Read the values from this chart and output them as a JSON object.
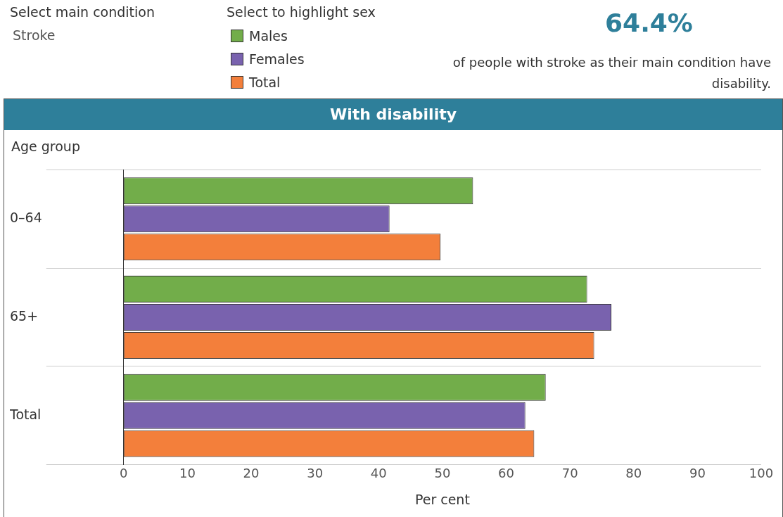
{
  "chart_data": {
    "type": "bar",
    "orientation": "horizontal",
    "title": "With disability",
    "ylabel": "Age group",
    "xlabel": "Per cent",
    "legend_title": "Select to highlight sex",
    "legend": "top left",
    "categories": [
      "0–64",
      "65+",
      "Total"
    ],
    "series": [
      {
        "name": "Males",
        "color": "#72ad4a",
        "values": [
          54.8,
          72.7,
          66.2
        ]
      },
      {
        "name": "Females",
        "color": "#7962ae",
        "values": [
          41.7,
          76.5,
          63.0
        ]
      },
      {
        "name": "Total",
        "color": "#f37f3b",
        "values": [
          49.7,
          73.8,
          64.4
        ]
      }
    ],
    "xlim": [
      0,
      100
    ],
    "xticks": [
      0,
      10,
      20,
      30,
      40,
      50,
      60,
      70,
      80,
      90,
      100
    ],
    "grid": "y",
    "annotations": [
      "Select main condition",
      "Stroke",
      "64.4%",
      "of people with stroke as their main condition have disability."
    ]
  }
}
